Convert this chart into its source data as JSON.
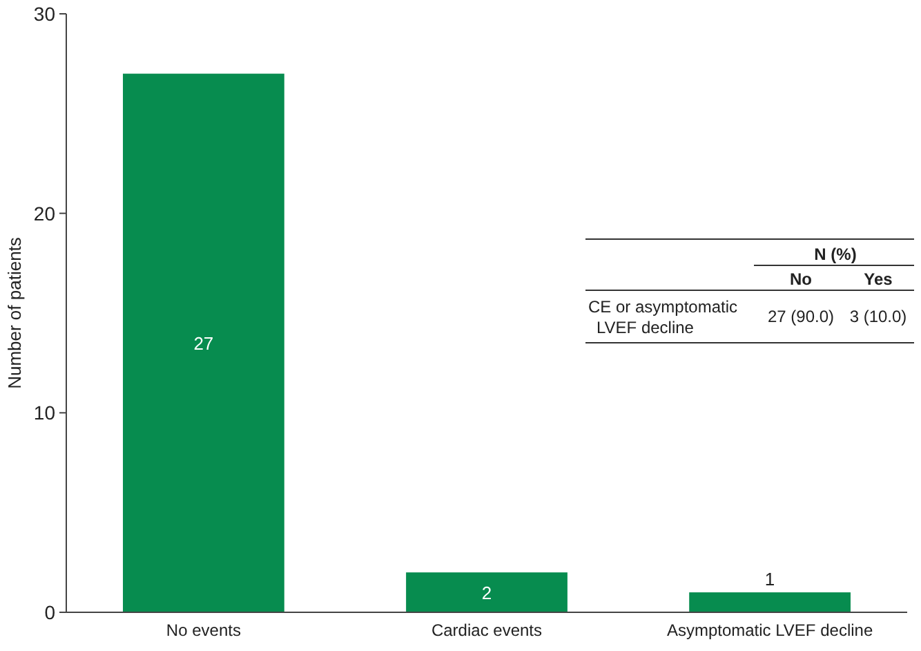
{
  "chart_data": {
    "type": "bar",
    "ylabel": "Number of patients",
    "categories": [
      "No events",
      "Cardiac events",
      "Asymptomatic LVEF decline"
    ],
    "values": [
      27,
      2,
      1
    ],
    "color": "#078c4f",
    "ylim": [
      0,
      30
    ],
    "yticks": [
      0,
      10,
      20,
      30
    ],
    "data_labels": true,
    "annotations": [
      "N (%)",
      "No",
      "Yes",
      "CE or asymptomatic LVEF decline",
      "27 (90.0)",
      "3 (10.0)"
    ]
  }
}
